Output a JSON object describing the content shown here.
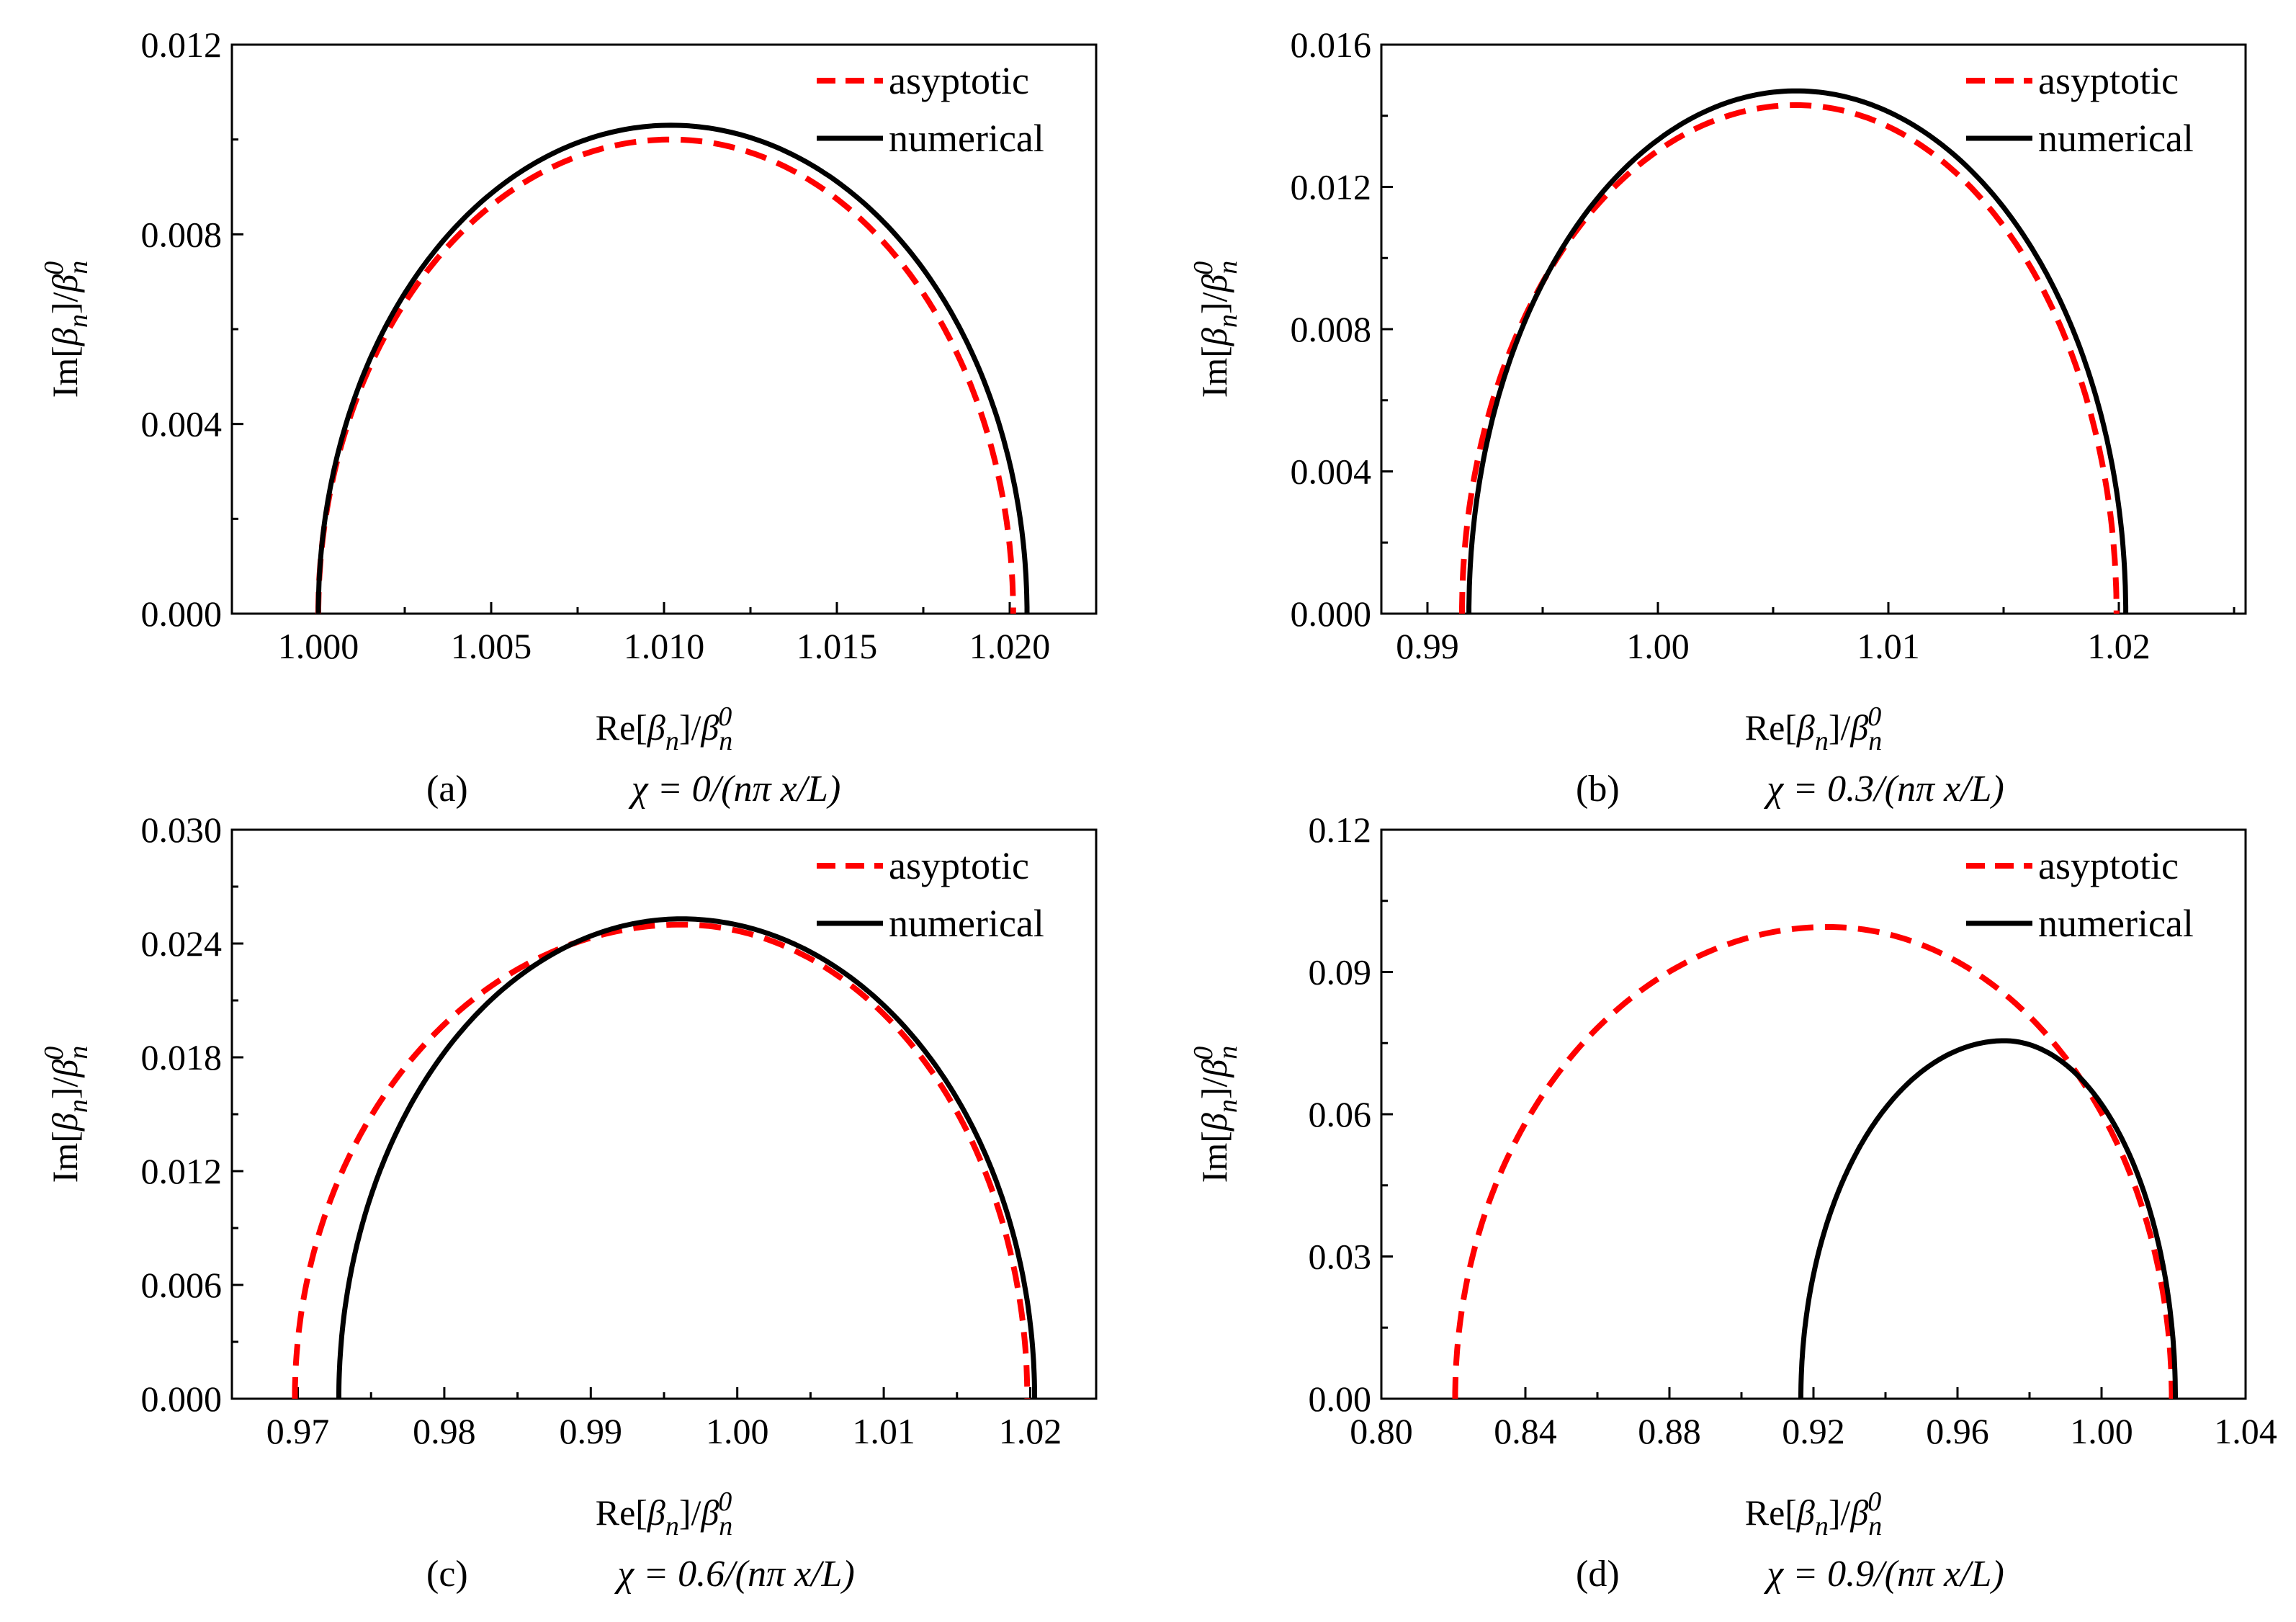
{
  "chart_data": [
    {
      "type": "line",
      "panel": "(a)",
      "caption": "χ = 0/(nπ x/L)",
      "xlabel": "Re[βn]/βn0",
      "ylabel": "Im[βn]/βn0",
      "xlim": [
        0.9975,
        1.0225
      ],
      "ylim": [
        0,
        0.012
      ],
      "xticks": [
        1.0,
        1.005,
        1.01,
        1.015,
        1.02
      ],
      "xtick_labels": [
        "1.000",
        "1.005",
        "1.010",
        "1.015",
        "1.020"
      ],
      "yticks": [
        0,
        0.004,
        0.008,
        0.012
      ],
      "ytick_labels": [
        "0.000",
        "0.004",
        "0.008",
        "0.012"
      ],
      "legend": [
        "asyptotic",
        "numerical"
      ],
      "legend_position": "top-right",
      "series": [
        {
          "name": "asyptotic",
          "style": "dashed",
          "color": "#ff0000",
          "x_start": 1.0,
          "x_peak": 1.0102,
          "x_end": 1.0201,
          "y_peak": 0.01
        },
        {
          "name": "numerical",
          "style": "solid",
          "color": "#000000",
          "x_start": 1.0,
          "x_peak": 1.0102,
          "x_end": 1.0205,
          "y_peak": 0.0103
        }
      ]
    },
    {
      "type": "line",
      "panel": "(b)",
      "caption": "χ = 0.3/(nπ x/L)",
      "xlabel": "Re[βn]/βn0",
      "ylabel": "Im[βn]/βn0",
      "xlim": [
        0.988,
        1.0255
      ],
      "ylim": [
        0,
        0.016
      ],
      "xticks": [
        0.99,
        1.0,
        1.01,
        1.02
      ],
      "xtick_labels": [
        "0.99",
        "1.00",
        "1.01",
        "1.02"
      ],
      "yticks": [
        0,
        0.004,
        0.008,
        0.012,
        0.016
      ],
      "ytick_labels": [
        "0.000",
        "0.004",
        "0.008",
        "0.012",
        "0.016"
      ],
      "legend": [
        "asyptotic",
        "numerical"
      ],
      "legend_position": "top-right",
      "series": [
        {
          "name": "asyptotic",
          "style": "dashed",
          "color": "#ff0000",
          "x_start": 0.9915,
          "x_peak": 1.006,
          "x_end": 1.0199,
          "y_peak": 0.0143
        },
        {
          "name": "numerical",
          "style": "solid",
          "color": "#000000",
          "x_start": 0.9918,
          "x_peak": 1.006,
          "x_end": 1.0203,
          "y_peak": 0.0147
        }
      ]
    },
    {
      "type": "line",
      "panel": "(c)",
      "caption": "χ = 0.6/(nπ x/L)",
      "xlabel": "Re[βn]/βn0",
      "ylabel": "Im[βn]/βn0",
      "xlim": [
        0.9655,
        1.0245
      ],
      "ylim": [
        0,
        0.03
      ],
      "xticks": [
        0.97,
        0.98,
        0.99,
        1.0,
        1.01,
        1.02
      ],
      "xtick_labels": [
        "0.97",
        "0.98",
        "0.99",
        "1.00",
        "1.01",
        "1.02"
      ],
      "yticks": [
        0,
        0.006,
        0.012,
        0.018,
        0.024,
        0.03
      ],
      "ytick_labels": [
        "0.000",
        "0.006",
        "0.012",
        "0.018",
        "0.024",
        "0.030"
      ],
      "legend": [
        "asyptotic",
        "numerical"
      ],
      "legend_position": "top-right",
      "series": [
        {
          "name": "asyptotic",
          "style": "dashed",
          "color": "#ff0000",
          "x_start": 0.9698,
          "x_peak": 0.9962,
          "x_end": 1.0198,
          "y_peak": 0.025
        },
        {
          "name": "numerical",
          "style": "solid",
          "color": "#000000",
          "x_start": 0.9728,
          "x_peak": 0.9962,
          "x_end": 1.0203,
          "y_peak": 0.0253
        }
      ]
    },
    {
      "type": "line",
      "panel": "(d)",
      "caption": "χ = 0.9/(nπ x/L)",
      "xlabel": "Re[βn]/βn0",
      "ylabel": "Im[βn]/βn0",
      "xlim": [
        0.8,
        1.04
      ],
      "ylim": [
        0,
        0.12
      ],
      "xticks": [
        0.8,
        0.84,
        0.88,
        0.92,
        0.96,
        1.0,
        1.04
      ],
      "xtick_labels": [
        "0.80",
        "0.84",
        "0.88",
        "0.92",
        "0.96",
        "1.00",
        "1.04"
      ],
      "yticks": [
        0,
        0.03,
        0.06,
        0.09,
        0.12
      ],
      "ytick_labels": [
        "0.00",
        "0.03",
        "0.06",
        "0.09",
        "0.12"
      ],
      "legend": [
        "asyptotic",
        "numerical"
      ],
      "legend_position": "top-right",
      "series": [
        {
          "name": "asyptotic",
          "style": "dashed",
          "color": "#ff0000",
          "x_start": 0.8205,
          "x_peak": 0.924,
          "x_end": 1.0195,
          "y_peak": 0.0995
        },
        {
          "name": "numerical",
          "style": "solid",
          "color": "#000000",
          "x_start": 0.9165,
          "x_peak": 0.973,
          "x_end": 1.0205,
          "y_peak": 0.0755
        }
      ]
    }
  ]
}
